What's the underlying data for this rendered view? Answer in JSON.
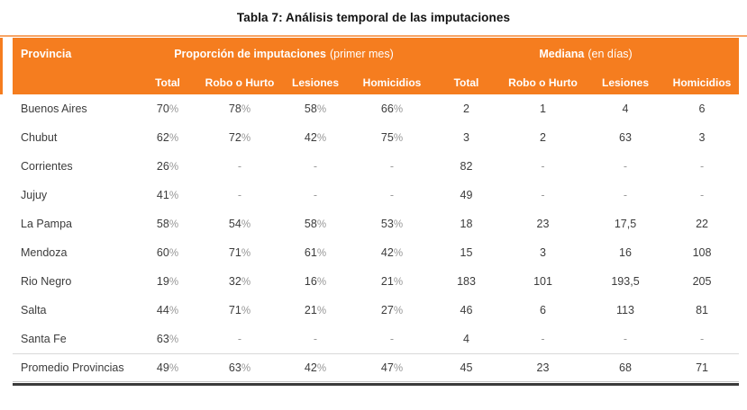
{
  "title": "Tabla 7: Análisis temporal de las imputaciones",
  "colors": {
    "accent_orange": "#f57d1f",
    "light_orange_rule": "#f7a465",
    "header_text": "#ffffff",
    "body_text": "#3c3c3c",
    "muted_text": "#979797",
    "bottom_rule": "#3b3b3b"
  },
  "table": {
    "corner_header": "Provincia",
    "groups": [
      {
        "title": "Proporción de imputaciones",
        "subtitle": "(primer mes)"
      },
      {
        "title": "Mediana",
        "subtitle": "(en días)"
      }
    ],
    "subheaders": [
      "Total",
      "Robo o Hurto",
      "Lesiones",
      "Homicidios",
      "Total",
      "Robo o Hurto",
      "Lesiones",
      "Homicidios"
    ],
    "rows": [
      {
        "provincia": "Buenos Aires",
        "values": [
          "70%",
          "78%",
          "58%",
          "66%",
          "2",
          "1",
          "4",
          "6"
        ],
        "summary": false
      },
      {
        "provincia": "Chubut",
        "values": [
          "62%",
          "72%",
          "42%",
          "75%",
          "3",
          "2",
          "63",
          "3"
        ],
        "summary": false
      },
      {
        "provincia": "Corrientes",
        "values": [
          "26%",
          "-",
          "-",
          "-",
          "82",
          "-",
          "-",
          "-"
        ],
        "summary": false
      },
      {
        "provincia": "Jujuy",
        "values": [
          "41%",
          "-",
          "-",
          "-",
          "49",
          "-",
          "-",
          "-"
        ],
        "summary": false
      },
      {
        "provincia": "La Pampa",
        "values": [
          "58%",
          "54%",
          "58%",
          "53%",
          "18",
          "23",
          "17,5",
          "22"
        ],
        "summary": false
      },
      {
        "provincia": "Mendoza",
        "values": [
          "60%",
          "71%",
          "61%",
          "42%",
          "15",
          "3",
          "16",
          "108"
        ],
        "summary": false
      },
      {
        "provincia": "Rio Negro",
        "values": [
          "19%",
          "32%",
          "16%",
          "21%",
          "183",
          "101",
          "193,5",
          "205"
        ],
        "summary": false
      },
      {
        "provincia": "Salta",
        "values": [
          "44%",
          "71%",
          "21%",
          "27%",
          "46",
          "6",
          "113",
          "81"
        ],
        "summary": false
      },
      {
        "provincia": "Santa Fe",
        "values": [
          "63%",
          "-",
          "-",
          "-",
          "4",
          "-",
          "-",
          "-"
        ],
        "summary": false
      },
      {
        "provincia": "Promedio Provincias",
        "values": [
          "49%",
          "63%",
          "42%",
          "47%",
          "45",
          "23",
          "68",
          "71"
        ],
        "summary": true
      }
    ]
  }
}
